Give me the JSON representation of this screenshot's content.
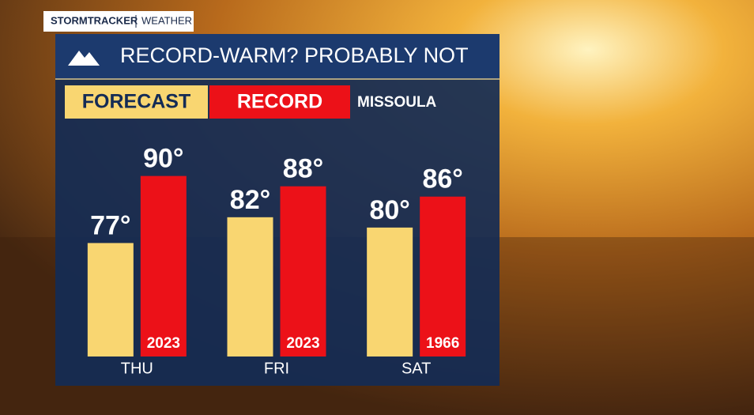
{
  "brand": {
    "name": "STORMTRACKER",
    "section": "WEATHER"
  },
  "chart_data": {
    "type": "bar",
    "title": "RECORD-WARM? PROBABLY NOT",
    "location": "MISSOULA",
    "categories": [
      "THU",
      "FRI",
      "SAT"
    ],
    "series": [
      {
        "name": "FORECAST",
        "color": "#f9d671",
        "values": [
          77,
          82,
          80
        ],
        "value_labels": [
          "77°",
          "82°",
          "80°"
        ]
      },
      {
        "name": "RECORD",
        "color": "#ec1118",
        "values": [
          90,
          88,
          86
        ],
        "value_labels": [
          "90°",
          "88°",
          "86°"
        ]
      }
    ],
    "record_years": [
      "2023",
      "2023",
      "1966"
    ],
    "ylim": [
      55,
      95
    ]
  }
}
